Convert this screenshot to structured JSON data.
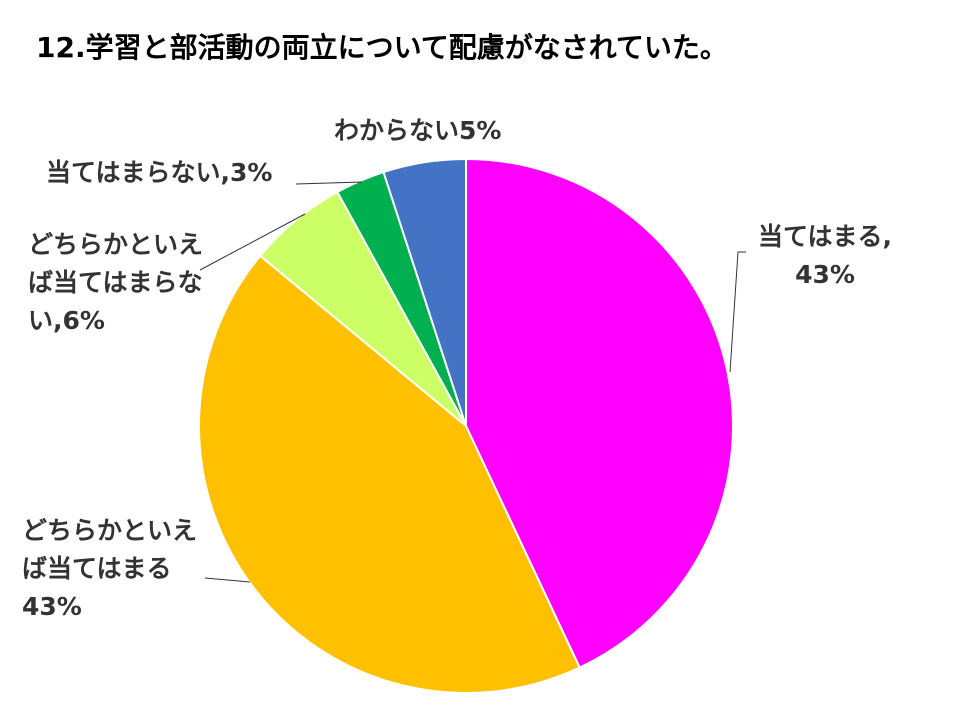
{
  "chart_data": {
    "type": "pie",
    "title": "12.学習と部活動の両立について配慮がなされていた。",
    "values": [
      43,
      43,
      6,
      3,
      5
    ],
    "value_labels": [
      "当てはまる, 43%",
      "どちらかといえば当てはまる　43%",
      "どちらかといえば当てはまらない,6%",
      "当てはまらない,3%",
      "わからない5%"
    ],
    "colors": [
      "#ff00ff",
      "#ffc000",
      "#ccff66",
      "#00b050",
      "#4472c4"
    ]
  }
}
